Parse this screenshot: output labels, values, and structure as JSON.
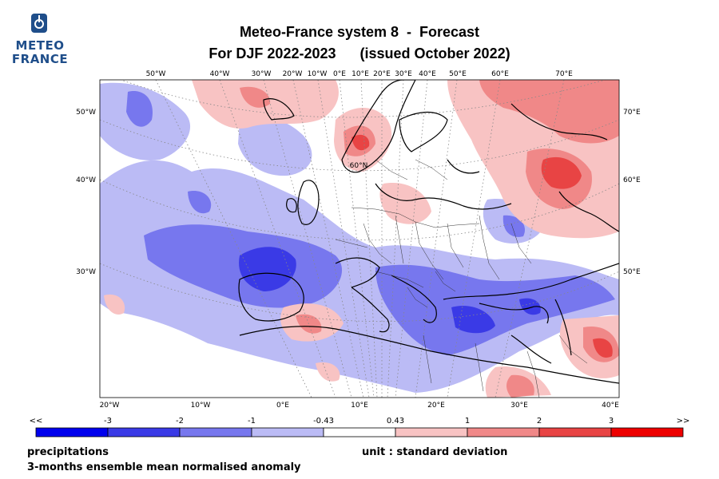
{
  "logo": {
    "line1": "METEO",
    "line2": "FRANCE",
    "color": "#1f4e8a"
  },
  "header": {
    "title_line1": "Meteo-France system 8  -  Forecast",
    "title_line2": "For DJF 2022-2023      (issued October 2022)"
  },
  "map": {
    "projection": "polar stereographic (Europe / North Atlantic)",
    "top_lon_labels": [
      "50°W",
      "40°W",
      "30°W",
      "20°W",
      "10°W",
      "0°E",
      "10°E",
      "20°E",
      "30°E",
      "40°E",
      "50°E",
      "60°E",
      "70°E"
    ],
    "bottom_lon_labels": [
      "20°W",
      "10°W",
      "0°E",
      "10°E",
      "20°E",
      "30°E",
      "40°E"
    ],
    "left_labels": [
      "50°W",
      "40°W",
      "30°W"
    ],
    "right_labels": [
      "70°E",
      "60°E",
      "50°E"
    ],
    "inner_label": "60°N",
    "anomaly_regions": [
      {
        "region": "Norway / Scandinavian mountains",
        "category": "1 to 3",
        "sign": "positive"
      },
      {
        "region": "Western Russia",
        "category": "1 to 3",
        "sign": "positive"
      },
      {
        "region": "Iberian Peninsula / Bay of Biscay",
        "category": "-3 to -1",
        "sign": "negative"
      },
      {
        "region": "Balkans / Black Sea",
        "category": "-3 to -1",
        "sign": "negative"
      },
      {
        "region": "North Africa (Algeria)",
        "category": "0.43 to 2",
        "sign": "positive"
      },
      {
        "region": "Caucasus / Caspian",
        "category": "1 to 3",
        "sign": "positive"
      },
      {
        "region": "Central North Atlantic",
        "category": "-2 to -0.43",
        "sign": "negative"
      }
    ]
  },
  "colorbar": {
    "tick_labels": [
      "<<",
      "-3",
      "-2",
      "-1",
      "-0.43",
      "0.43",
      "1",
      "2",
      "3",
      ">>"
    ],
    "colors": [
      "#0000ee",
      "#3a3ae6",
      "#7777ee",
      "#bbbbf5",
      "#ffffff",
      "#f8c3c3",
      "#f08888",
      "#e84444",
      "#ee0000"
    ]
  },
  "footer": {
    "variable": "precipitations",
    "unit": "unit : standard deviation",
    "description": "3-months ensemble mean normalised anomaly"
  }
}
